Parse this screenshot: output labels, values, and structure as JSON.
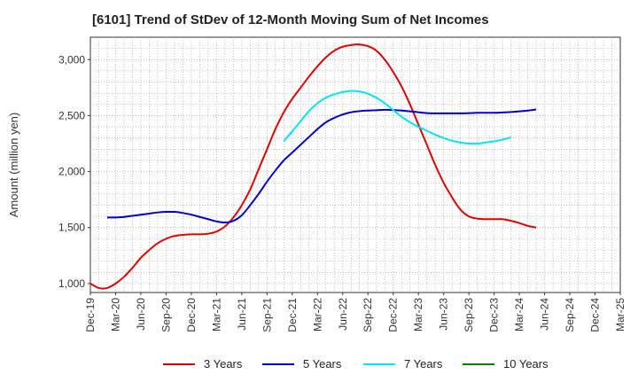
{
  "title": "[6101]  Trend of StDev of 12-Month Moving Sum of Net Incomes",
  "chart_data": {
    "type": "line",
    "title": "[6101]  Trend of StDev of 12-Month Moving Sum of Net Incomes",
    "xlabel": "",
    "ylabel": "Amount (million yen)",
    "ylim": [
      920,
      3200
    ],
    "yticks": [
      1000,
      1500,
      2000,
      2500,
      3000
    ],
    "ytick_labels": [
      "1,000",
      "1,500",
      "2,000",
      "2,500",
      "3,000"
    ],
    "xtick_labels": [
      "Dec-19",
      "Mar-20",
      "Jun-20",
      "Sep-20",
      "Dec-20",
      "Mar-21",
      "Jun-21",
      "Sep-21",
      "Dec-21",
      "Mar-22",
      "Jun-22",
      "Sep-22",
      "Dec-22",
      "Mar-23",
      "Jun-23",
      "Sep-23",
      "Dec-23",
      "Mar-24",
      "Jun-24",
      "Sep-24",
      "Dec-24",
      "Mar-25"
    ],
    "grid": true,
    "legend_position": "bottom",
    "series": [
      {
        "name": "3 Years",
        "color": "#e00000",
        "points": [
          [
            0,
            1000
          ],
          [
            1,
            960
          ],
          [
            2,
            960
          ],
          [
            3,
            1000
          ],
          [
            4,
            1060
          ],
          [
            5,
            1140
          ],
          [
            6,
            1230
          ],
          [
            7,
            1300
          ],
          [
            8,
            1360
          ],
          [
            9,
            1400
          ],
          [
            10,
            1425
          ],
          [
            11,
            1435
          ],
          [
            12,
            1440
          ],
          [
            13,
            1440
          ],
          [
            14,
            1445
          ],
          [
            15,
            1465
          ],
          [
            16,
            1510
          ],
          [
            17,
            1590
          ],
          [
            18,
            1700
          ],
          [
            19,
            1840
          ],
          [
            20,
            2020
          ],
          [
            21,
            2200
          ],
          [
            22,
            2380
          ],
          [
            23,
            2530
          ],
          [
            24,
            2650
          ],
          [
            25,
            2750
          ],
          [
            26,
            2850
          ],
          [
            27,
            2940
          ],
          [
            28,
            3020
          ],
          [
            29,
            3080
          ],
          [
            30,
            3115
          ],
          [
            31,
            3130
          ],
          [
            32,
            3135
          ],
          [
            33,
            3120
          ],
          [
            34,
            3080
          ],
          [
            35,
            3000
          ],
          [
            36,
            2890
          ],
          [
            37,
            2760
          ],
          [
            38,
            2600
          ],
          [
            39,
            2420
          ],
          [
            40,
            2240
          ],
          [
            41,
            2060
          ],
          [
            42,
            1900
          ],
          [
            43,
            1770
          ],
          [
            44,
            1660
          ],
          [
            45,
            1600
          ],
          [
            46,
            1580
          ],
          [
            47,
            1575
          ],
          [
            48,
            1575
          ],
          [
            49,
            1575
          ],
          [
            50,
            1560
          ],
          [
            51,
            1540
          ],
          [
            52,
            1515
          ],
          [
            53,
            1500
          ]
        ]
      },
      {
        "name": "5 Years",
        "color": "#0000cc",
        "points": [
          [
            2,
            1590
          ],
          [
            3,
            1590
          ],
          [
            4,
            1595
          ],
          [
            5,
            1605
          ],
          [
            6,
            1615
          ],
          [
            7,
            1625
          ],
          [
            8,
            1635
          ],
          [
            9,
            1640
          ],
          [
            10,
            1640
          ],
          [
            11,
            1630
          ],
          [
            12,
            1615
          ],
          [
            13,
            1595
          ],
          [
            14,
            1575
          ],
          [
            15,
            1555
          ],
          [
            16,
            1545
          ],
          [
            17,
            1560
          ],
          [
            18,
            1610
          ],
          [
            19,
            1700
          ],
          [
            20,
            1800
          ],
          [
            21,
            1910
          ],
          [
            22,
            2010
          ],
          [
            23,
            2100
          ],
          [
            24,
            2170
          ],
          [
            25,
            2240
          ],
          [
            26,
            2310
          ],
          [
            27,
            2380
          ],
          [
            28,
            2440
          ],
          [
            29,
            2480
          ],
          [
            30,
            2510
          ],
          [
            31,
            2530
          ],
          [
            32,
            2540
          ],
          [
            33,
            2545
          ],
          [
            34,
            2548
          ],
          [
            35,
            2552
          ],
          [
            36,
            2550
          ],
          [
            37,
            2545
          ],
          [
            38,
            2538
          ],
          [
            39,
            2530
          ],
          [
            40,
            2522
          ],
          [
            41,
            2520
          ],
          [
            42,
            2520
          ],
          [
            43,
            2520
          ],
          [
            44,
            2520
          ],
          [
            45,
            2522
          ],
          [
            46,
            2525
          ],
          [
            47,
            2525
          ],
          [
            48,
            2525
          ],
          [
            49,
            2528
          ],
          [
            50,
            2532
          ],
          [
            51,
            2538
          ],
          [
            52,
            2545
          ],
          [
            53,
            2555
          ]
        ]
      },
      {
        "name": "7 Years",
        "color": "#00e5ee",
        "points": [
          [
            23,
            2270
          ],
          [
            24,
            2360
          ],
          [
            25,
            2450
          ],
          [
            26,
            2540
          ],
          [
            27,
            2610
          ],
          [
            28,
            2660
          ],
          [
            29,
            2690
          ],
          [
            30,
            2710
          ],
          [
            31,
            2720
          ],
          [
            32,
            2715
          ],
          [
            33,
            2695
          ],
          [
            34,
            2660
          ],
          [
            35,
            2610
          ],
          [
            36,
            2550
          ],
          [
            37,
            2490
          ],
          [
            38,
            2440
          ],
          [
            39,
            2400
          ],
          [
            40,
            2365
          ],
          [
            41,
            2330
          ],
          [
            42,
            2300
          ],
          [
            43,
            2275
          ],
          [
            44,
            2260
          ],
          [
            45,
            2250
          ],
          [
            46,
            2250
          ],
          [
            47,
            2260
          ],
          [
            48,
            2270
          ],
          [
            49,
            2285
          ],
          [
            50,
            2305
          ]
        ]
      },
      {
        "name": "10 Years",
        "color": "#008000",
        "points": []
      }
    ]
  },
  "legend": [
    {
      "label": "3 Years",
      "color": "#e00000"
    },
    {
      "label": "5 Years",
      "color": "#0000cc"
    },
    {
      "label": "7 Years",
      "color": "#00e5ee"
    },
    {
      "label": "10 Years",
      "color": "#008000"
    }
  ]
}
